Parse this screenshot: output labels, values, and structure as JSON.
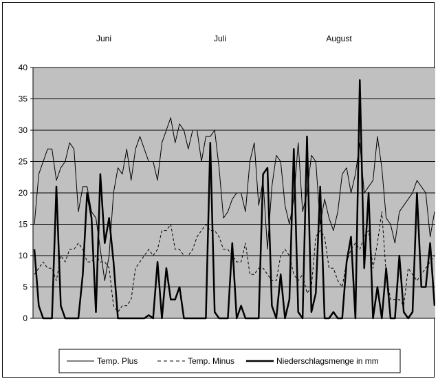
{
  "chart_data": {
    "type": "line",
    "month_labels": [
      "Juni",
      "Juli",
      "August"
    ],
    "ylim": [
      0,
      40
    ],
    "yticks": [
      0,
      5,
      10,
      15,
      20,
      25,
      30,
      35,
      40
    ],
    "grid": true,
    "legend_position": "bottom",
    "x": [
      1,
      2,
      3,
      4,
      5,
      6,
      7,
      8,
      9,
      10,
      11,
      12,
      13,
      14,
      15,
      16,
      17,
      18,
      19,
      20,
      21,
      22,
      23,
      24,
      25,
      26,
      27,
      28,
      29,
      30,
      31,
      32,
      33,
      34,
      35,
      36,
      37,
      38,
      39,
      40,
      41,
      42,
      43,
      44,
      45,
      46,
      47,
      48,
      49,
      50,
      51,
      52,
      53,
      54,
      55,
      56,
      57,
      58,
      59,
      60,
      61,
      62,
      63,
      64,
      65,
      66,
      67,
      68,
      69,
      70,
      71,
      72,
      73,
      74,
      75,
      76,
      77,
      78,
      79,
      80,
      81,
      82,
      83,
      84,
      85,
      86,
      87,
      88,
      89,
      90,
      91,
      92
    ],
    "series": [
      {
        "name": "Temp. Plus",
        "style": "thin-solid",
        "color": "#000000",
        "values": [
          15,
          23,
          25,
          27,
          27,
          22,
          24,
          25,
          28,
          27,
          17,
          21,
          21,
          17,
          16,
          11,
          6,
          10,
          20,
          24,
          23,
          27,
          22,
          27,
          29,
          27,
          25,
          25,
          22,
          28,
          30,
          32,
          28,
          31,
          30,
          27,
          30,
          30,
          25,
          29,
          29,
          30,
          24,
          16,
          17,
          19,
          20,
          20,
          17,
          25,
          28,
          18,
          22,
          11,
          21,
          26,
          25,
          18,
          15,
          19,
          28,
          17,
          20,
          26,
          25,
          15,
          19,
          16,
          14,
          17,
          23,
          24,
          20,
          23,
          28,
          20,
          21,
          22,
          29,
          24,
          16,
          15,
          12,
          17,
          18,
          19,
          20,
          22,
          21,
          20,
          13,
          17
        ],
        "xlabel": "",
        "ylabel": ""
      },
      {
        "name": "Temp. Minus",
        "style": "dashed",
        "color": "#000000",
        "values": [
          7,
          8,
          9,
          8,
          8,
          6,
          10,
          9,
          11,
          11,
          12,
          11,
          9,
          9,
          10,
          9,
          9,
          8,
          2,
          1,
          2,
          2,
          3,
          8,
          9,
          10,
          11,
          10,
          11,
          14,
          14,
          15,
          11,
          11,
          10,
          10,
          11,
          13,
          14,
          15,
          14,
          14,
          13,
          11,
          11,
          10,
          9,
          9,
          12,
          7,
          7,
          8,
          8,
          7,
          6,
          6,
          10,
          11,
          10,
          7,
          6,
          7,
          4,
          5,
          13,
          14,
          13,
          8,
          8,
          6,
          5,
          9,
          11,
          12,
          11,
          13,
          14,
          8,
          12,
          17,
          7,
          3,
          3,
          3,
          2,
          8,
          7,
          6,
          7,
          8,
          9,
          10
        ],
        "xlabel": "",
        "ylabel": ""
      },
      {
        "name": "Niederschlagsmenge in mm",
        "style": "thick-solid",
        "color": "#000000",
        "values": [
          11,
          2,
          0,
          0,
          0,
          21,
          2,
          0,
          0,
          0,
          0,
          7,
          20,
          16,
          1,
          23,
          12,
          16,
          9,
          0,
          0,
          0,
          0,
          0,
          0,
          0,
          0.5,
          0,
          9,
          0,
          8,
          3,
          3,
          5,
          0,
          0,
          0,
          0,
          0,
          0,
          28,
          1,
          0,
          0,
          0,
          12,
          0,
          2,
          0,
          0,
          0,
          0,
          23,
          24,
          2,
          0,
          7,
          0,
          3,
          27,
          1,
          0,
          29,
          1,
          4,
          21,
          0,
          0,
          1,
          0,
          0,
          9,
          13,
          0,
          38,
          8,
          20,
          0,
          5,
          0,
          8,
          0,
          0,
          10,
          1,
          0,
          1,
          20,
          5,
          5,
          12,
          2
        ],
        "xlabel": "",
        "ylabel": ""
      }
    ]
  }
}
